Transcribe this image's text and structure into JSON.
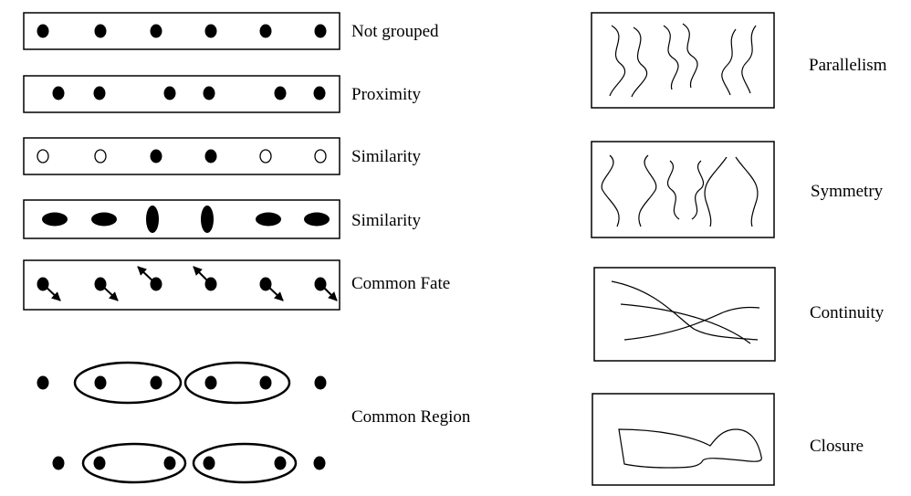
{
  "labels": {
    "not_grouped": "Not grouped",
    "proximity": "Proximity",
    "similarity_color": "Similarity",
    "similarity_shape": "Similarity",
    "common_fate": "Common Fate",
    "common_region": "Common Region",
    "parallelism": "Parallelism",
    "symmetry": "Symmetry",
    "continuity": "Continuity",
    "closure": "Closure"
  },
  "colors": {
    "ink": "#000000",
    "background": "#ffffff"
  }
}
